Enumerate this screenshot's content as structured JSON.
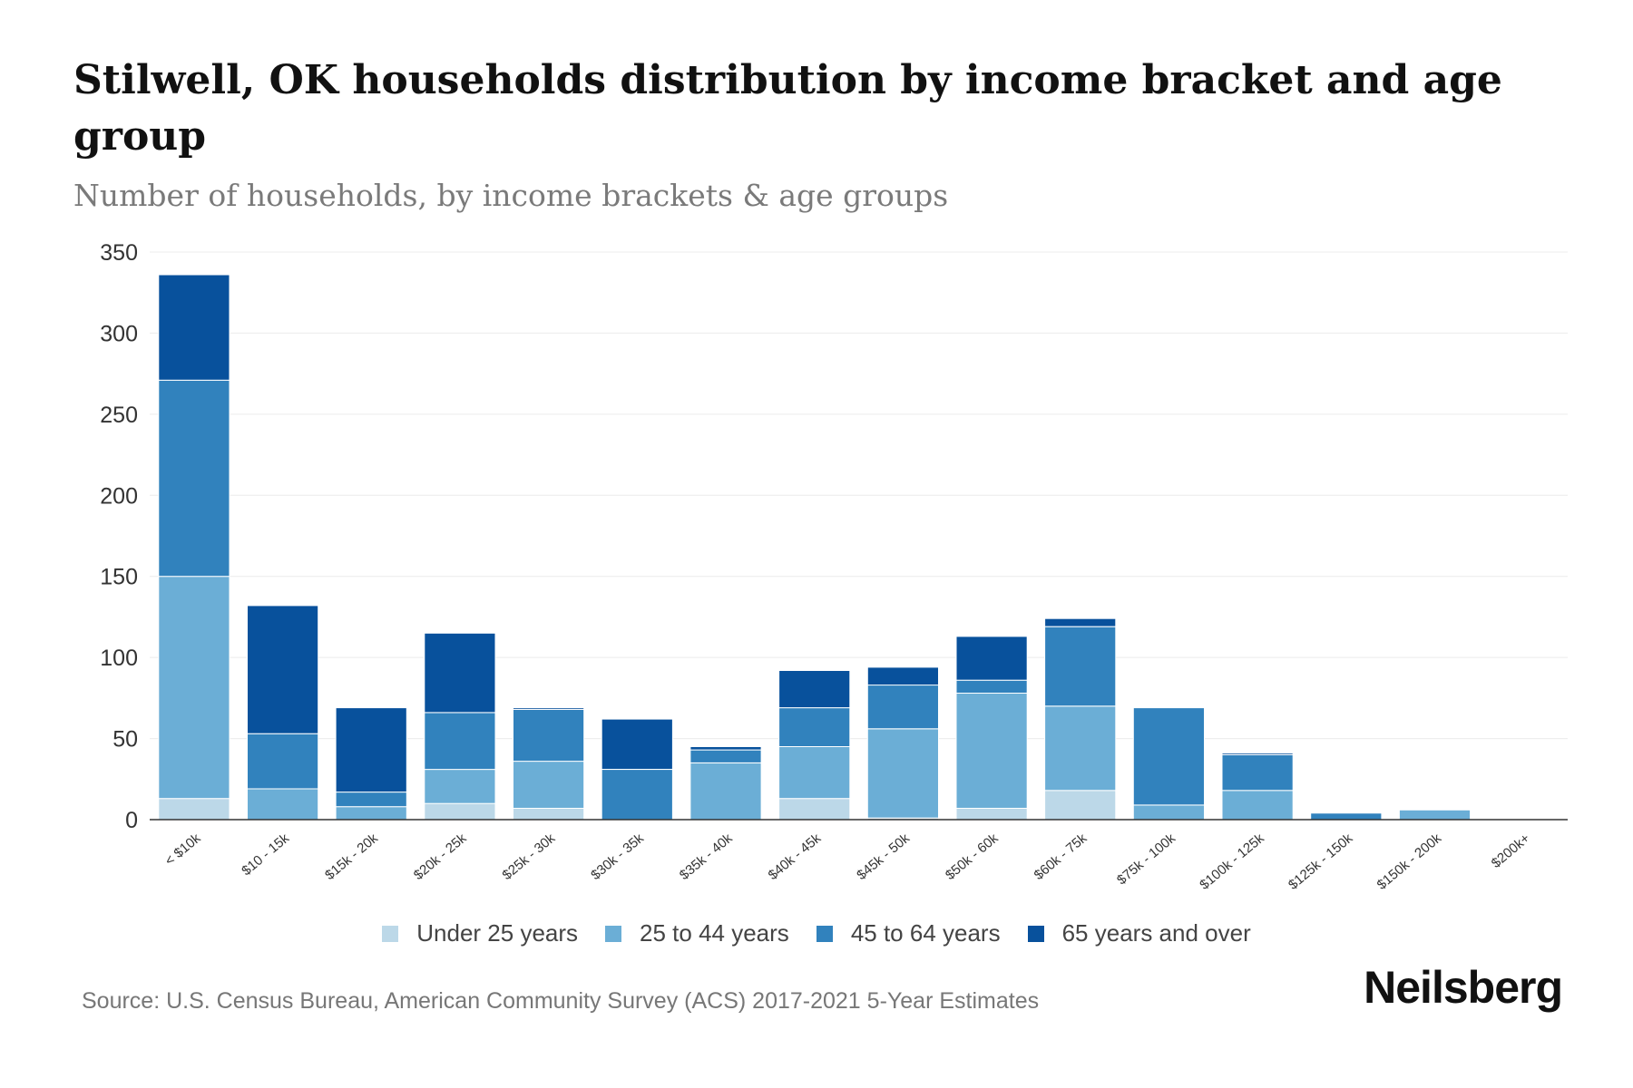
{
  "chart_data": {
    "type": "bar",
    "stacked": true,
    "title": "Stilwell, OK households distribution by income bracket and age group",
    "subtitle": "Number of households, by income brackets & age groups",
    "xlabel": "",
    "ylabel": "",
    "ylim": [
      0,
      350
    ],
    "yticks": [
      0,
      50,
      100,
      150,
      200,
      250,
      300,
      350
    ],
    "grid": true,
    "legend_position": "bottom",
    "categories": [
      "< $10k",
      "$10 - 15k",
      "$15k - 20k",
      "$20k - 25k",
      "$25k - 30k",
      "$30k - 35k",
      "$35k - 40k",
      "$40k - 45k",
      "$45k - 50k",
      "$50k - 60k",
      "$60k - 75k",
      "$75k - 100k",
      "$100k - 125k",
      "$125k - 150k",
      "$150k - 200k",
      "$200k+"
    ],
    "series": [
      {
        "name": "Under 25 years",
        "color": "#bcd8e8",
        "values": [
          13,
          0,
          0,
          10,
          7,
          0,
          0,
          13,
          1,
          7,
          18,
          0,
          0,
          0,
          0,
          0
        ]
      },
      {
        "name": "25 to 44 years",
        "color": "#6baed6",
        "values": [
          137,
          19,
          8,
          21,
          29,
          0,
          35,
          32,
          55,
          71,
          52,
          9,
          18,
          0,
          6,
          0
        ]
      },
      {
        "name": "45 to 64 years",
        "color": "#3182bd",
        "values": [
          121,
          34,
          9,
          35,
          32,
          31,
          8,
          24,
          27,
          8,
          49,
          60,
          22,
          4,
          0,
          0
        ]
      },
      {
        "name": "65 years and over",
        "color": "#08519c",
        "values": [
          65,
          79,
          52,
          49,
          1,
          31,
          2,
          23,
          11,
          27,
          5,
          0,
          1,
          0,
          0,
          0
        ]
      }
    ]
  },
  "source": "Source: U.S. Census Bureau, American Community Survey (ACS) 2017-2021 5-Year Estimates",
  "brand": "Neilsberg"
}
